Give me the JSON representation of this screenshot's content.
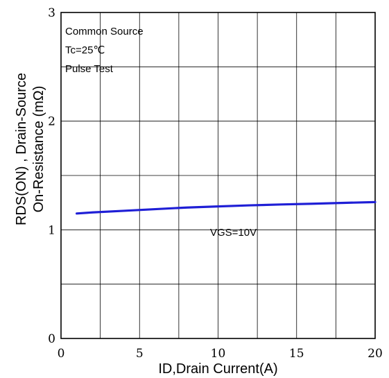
{
  "chart_data": {
    "type": "line",
    "title": "",
    "xlabel": "ID,Drain Current(A)",
    "ylabel_line1": "RDS(ON) , Drain-Source",
    "ylabel_line2": "On-Resistance (mΩ)",
    "xlim": [
      0,
      20
    ],
    "ylim": [
      0,
      3
    ],
    "x_ticks": [
      0,
      5,
      10,
      15,
      20
    ],
    "y_ticks": [
      0,
      1,
      2,
      3
    ],
    "x_tick_labels": [
      "0",
      "5",
      "10",
      "15",
      "20"
    ],
    "y_tick_labels": [
      "0",
      "1",
      "2",
      "3"
    ],
    "grid": true,
    "conditions": [
      "Common Source",
      "Tc=25℃",
      "Pulse Test"
    ],
    "series": [
      {
        "name": "VGS=10V",
        "color": "#1f1fd6",
        "x": [
          1,
          2,
          4,
          6,
          8,
          10,
          12,
          14,
          16,
          18,
          20
        ],
        "y": [
          1.15,
          1.16,
          1.175,
          1.19,
          1.205,
          1.215,
          1.225,
          1.233,
          1.24,
          1.248,
          1.255
        ]
      }
    ]
  }
}
